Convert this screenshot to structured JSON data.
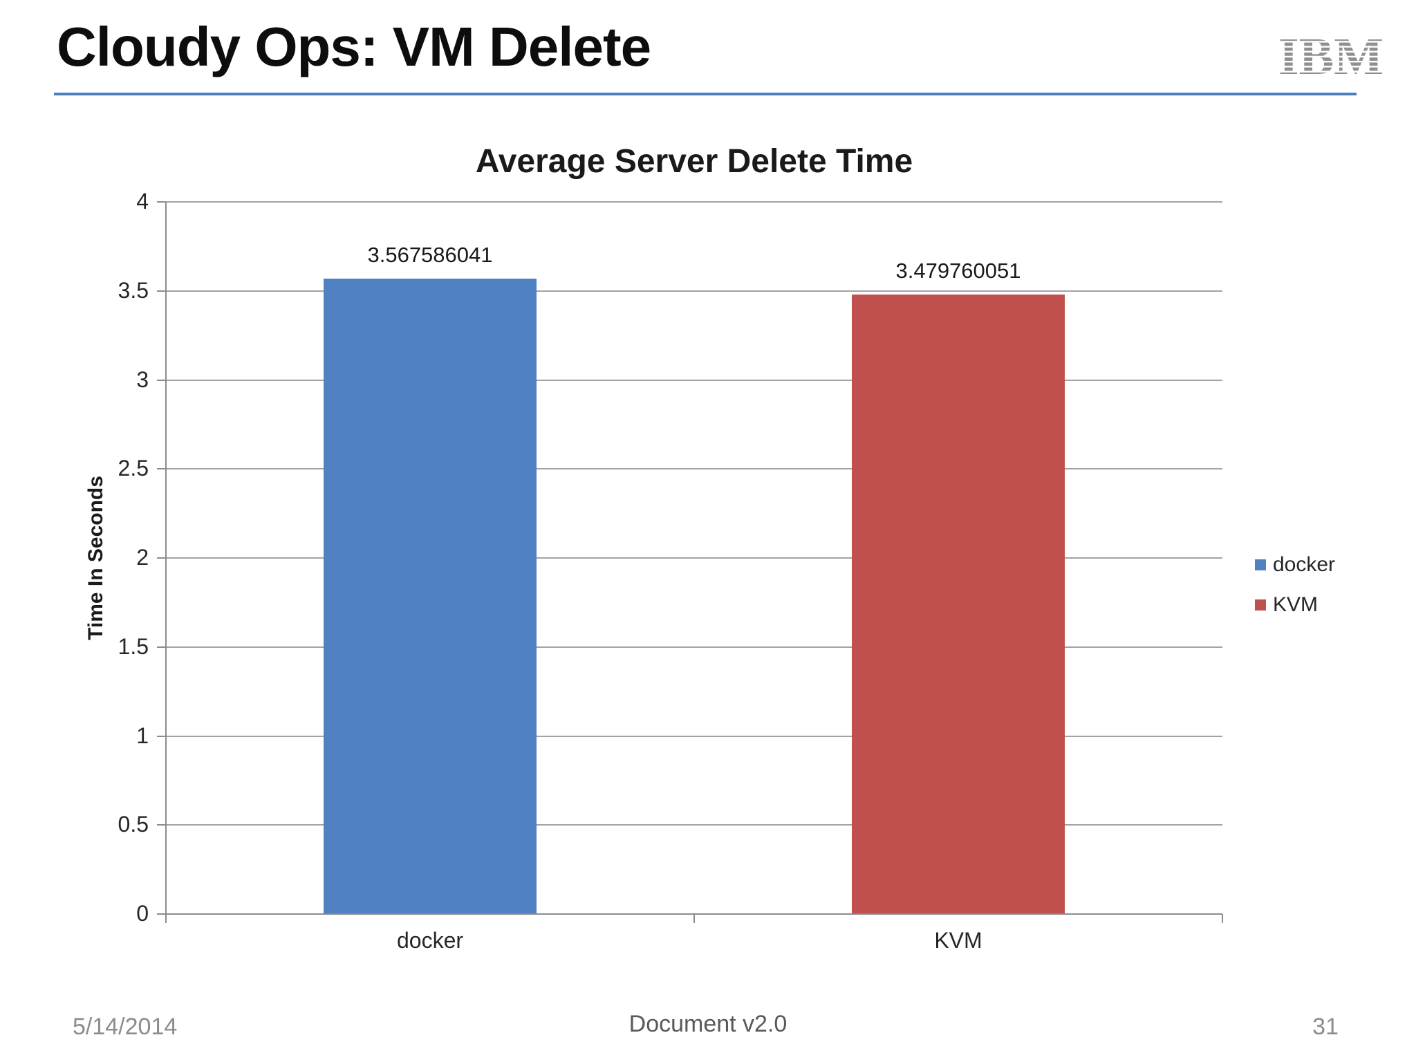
{
  "slide": {
    "title": "Cloudy Ops: VM Delete",
    "title_underline_color": "#4a7ebb",
    "logo_text": "IBM",
    "logo_color": "#8f8f8f",
    "footer": {
      "date": "5/14/2014",
      "center": "Document v2.0",
      "page": "31"
    }
  },
  "chart_data": {
    "type": "bar",
    "title": "Average Server Delete Time",
    "categories": [
      "docker",
      "KVM"
    ],
    "values": [
      3.567586041,
      3.479760051
    ],
    "data_labels": [
      "3.567586041",
      "3.479760051"
    ],
    "xlabel": "",
    "ylabel": "Time In Seconds",
    "ylim": [
      0,
      4
    ],
    "ytick_step": 0.5,
    "yticks": [
      "0",
      "0.5",
      "1",
      "1.5",
      "2",
      "2.5",
      "3",
      "3.5",
      "4"
    ],
    "grid": true,
    "gridline_color": "#a3a3a3",
    "axis_color": "#8c8c8c",
    "legend_position": "right",
    "legend": [
      {
        "label": "docker",
        "color": "#4f81c3"
      },
      {
        "label": "KVM",
        "color": "#c0504d"
      }
    ]
  }
}
